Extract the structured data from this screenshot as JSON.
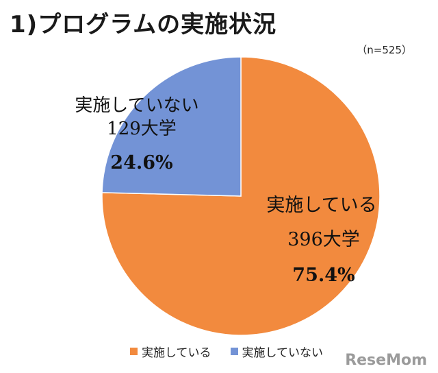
{
  "header": {
    "title": "1)プログラムの実施状況",
    "sample_note": "（n=525）"
  },
  "chart_data": {
    "type": "pie",
    "title": "1)プログラムの実施状況",
    "note": "（n=525）",
    "slices": [
      {
        "label": "実施している",
        "count_label": "396大学",
        "value": 75.4,
        "percent_label": "75.4%",
        "color": "#F28A3E"
      },
      {
        "label": "実施していない",
        "count_label": "129大学",
        "value": 24.6,
        "percent_label": "24.6%",
        "color": "#7393D6"
      }
    ],
    "legend": [
      "実施している",
      "実施していない"
    ],
    "legend_position": "bottom"
  },
  "watermark": "ReseMom"
}
